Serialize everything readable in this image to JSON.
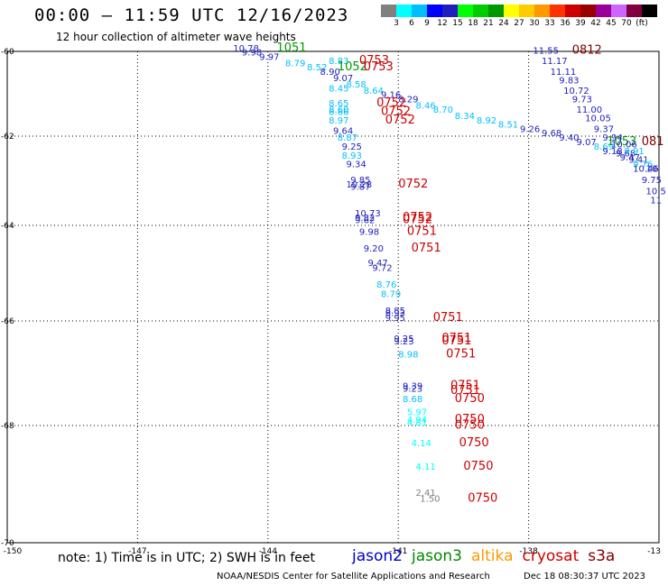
{
  "header": {
    "title": "00:00 – 11:59 UTC 12/16/2023",
    "subtitle": "12 hour collection of altimeter wave heights"
  },
  "colorbar": {
    "colors": [
      "#808080",
      "#00ffff",
      "#00bfff",
      "#0000ff",
      "#1f1fbf",
      "#00ff00",
      "#00cc00",
      "#009900",
      "#ffff00",
      "#ffcc00",
      "#ff9900",
      "#ff3300",
      "#cc0000",
      "#990000",
      "#990099",
      "#cc66ff",
      "#800040",
      "#000000"
    ],
    "labels": [
      "3",
      "6",
      "9",
      "12",
      "15",
      "18",
      "21",
      "24",
      "27",
      "30",
      "33",
      "36",
      "39",
      "42",
      "45",
      "70",
      "(ft)"
    ]
  },
  "axes": {
    "x_ticks": [
      "-150",
      "-147",
      "-144",
      "-141",
      "-138",
      "-13"
    ],
    "y_ticks": [
      "-60",
      "-62",
      "-64",
      "-66",
      "-68",
      "-70"
    ]
  },
  "footer": {
    "note": "note: 1) Time is in UTC; 2) SWH is in feet",
    "credit": "NOAA/NESDIS Center for Satellite Applications and Research",
    "timestamp": "Dec 18 08:30:37 UTC 2023"
  },
  "legend": [
    {
      "name": "jason2",
      "color": "#0000cc"
    },
    {
      "name": "jason3",
      "color": "#008800"
    },
    {
      "name": "altika",
      "color": "#ff9900"
    },
    {
      "name": "cryosat",
      "color": "#cc0000"
    },
    {
      "name": "s3a",
      "color": "#800000"
    }
  ],
  "map_labels": [
    {
      "text": "10.78",
      "color": "#1f1fbf",
      "lon": -144.8,
      "lat": -60.0
    },
    {
      "text": "9.97",
      "color": "#1f1fbf",
      "lon": -144.2,
      "lat": -60.2
    },
    {
      "text": "9.98",
      "color": "#1f1fbf",
      "lon": -144.6,
      "lat": -60.1
    },
    {
      "text": "1051",
      "color": "#009900",
      "lon": -143.8,
      "lat": -59.95
    },
    {
      "text": "8.79",
      "color": "#00bfff",
      "lon": -143.6,
      "lat": -60.35
    },
    {
      "text": "8.52",
      "color": "#00bfff",
      "lon": -143.1,
      "lat": -60.45
    },
    {
      "text": "8.83",
      "color": "#00bfff",
      "lon": -142.6,
      "lat": -60.3
    },
    {
      "text": "8.90",
      "color": "#1f1fbf",
      "lon": -142.8,
      "lat": -60.55
    },
    {
      "text": "1052",
      "color": "#009900",
      "lon": -142.4,
      "lat": -60.45
    },
    {
      "text": "0753",
      "color": "#cc0000",
      "lon": -141.9,
      "lat": -60.3
    },
    {
      "text": "0753",
      "color": "#cc0000",
      "lon": -141.8,
      "lat": -60.45
    },
    {
      "text": "9.07",
      "color": "#1f1fbf",
      "lon": -142.5,
      "lat": -60.7
    },
    {
      "text": "8.58",
      "color": "#00bfff",
      "lon": -142.2,
      "lat": -60.85
    },
    {
      "text": "8.45",
      "color": "#00bfff",
      "lon": -142.6,
      "lat": -60.95
    },
    {
      "text": "8.64",
      "color": "#00bfff",
      "lon": -141.8,
      "lat": -61.0
    },
    {
      "text": "9.16",
      "color": "#1f1fbf",
      "lon": -141.4,
      "lat": -61.1
    },
    {
      "text": "8.29",
      "color": "#1f1fbf",
      "lon": -141.0,
      "lat": -61.2
    },
    {
      "text": "8.65",
      "color": "#00bfff",
      "lon": -142.6,
      "lat": -61.3
    },
    {
      "text": "0752",
      "color": "#cc0000",
      "lon": -141.5,
      "lat": -61.3
    },
    {
      "text": "8.46",
      "color": "#00bfff",
      "lon": -140.6,
      "lat": -61.35
    },
    {
      "text": "8.70",
      "color": "#00bfff",
      "lon": -140.2,
      "lat": -61.45
    },
    {
      "text": "8.60",
      "color": "#00bfff",
      "lon": -142.6,
      "lat": -61.45
    },
    {
      "text": "8.66",
      "color": "#00bfff",
      "lon": -142.6,
      "lat": -61.5
    },
    {
      "text": "0752",
      "color": "#cc0000",
      "lon": -141.4,
      "lat": -61.5
    },
    {
      "text": "8.34",
      "color": "#00bfff",
      "lon": -139.7,
      "lat": -61.6
    },
    {
      "text": "8.97",
      "color": "#00bfff",
      "lon": -142.6,
      "lat": -61.7
    },
    {
      "text": "0752",
      "color": "#cc0000",
      "lon": -141.3,
      "lat": -61.7
    },
    {
      "text": "8.92",
      "color": "#00bfff",
      "lon": -139.2,
      "lat": -61.7
    },
    {
      "text": "8.51",
      "color": "#00bfff",
      "lon": -138.7,
      "lat": -61.8
    },
    {
      "text": "9.26",
      "color": "#1f1fbf",
      "lon": -138.2,
      "lat": -61.9
    },
    {
      "text": "9.64",
      "color": "#1f1fbf",
      "lon": -142.5,
      "lat": -61.95
    },
    {
      "text": "9.68",
      "color": "#1f1fbf",
      "lon": -137.7,
      "lat": -62.0
    },
    {
      "text": "8.87",
      "color": "#00bfff",
      "lon": -142.4,
      "lat": -62.1
    },
    {
      "text": "9.40",
      "color": "#1f1fbf",
      "lon": -137.3,
      "lat": -62.1
    },
    {
      "text": "9.07",
      "color": "#1f1fbf",
      "lon": -136.9,
      "lat": -62.2
    },
    {
      "text": "9.25",
      "color": "#1f1fbf",
      "lon": -142.3,
      "lat": -62.3
    },
    {
      "text": "8.93",
      "color": "#00bfff",
      "lon": -142.3,
      "lat": -62.5
    },
    {
      "text": "9.34",
      "color": "#1f1fbf",
      "lon": -142.2,
      "lat": -62.7
    },
    {
      "text": "9.85",
      "color": "#1f1fbf",
      "lon": -142.1,
      "lat": -63.05
    },
    {
      "text": "10.28",
      "color": "#1f1fbf",
      "lon": -142.2,
      "lat": -63.15
    },
    {
      "text": "9.87",
      "color": "#1f1fbf",
      "lon": -142.1,
      "lat": -63.2
    },
    {
      "text": "0752",
      "color": "#cc0000",
      "lon": -141.0,
      "lat": -63.15
    },
    {
      "text": "10.73",
      "color": "#1f1fbf",
      "lon": -142.0,
      "lat": -63.8
    },
    {
      "text": "9.82",
      "color": "#1f1fbf",
      "lon": -142.0,
      "lat": -63.9
    },
    {
      "text": "9.62",
      "color": "#1f1fbf",
      "lon": -142.0,
      "lat": -63.95
    },
    {
      "text": "0752",
      "color": "#cc0000",
      "lon": -140.9,
      "lat": -63.9
    },
    {
      "text": "0752",
      "color": "#cc0000",
      "lon": -140.9,
      "lat": -63.95
    },
    {
      "text": "9.98",
      "color": "#1f1fbf",
      "lon": -141.9,
      "lat": -64.2
    },
    {
      "text": "0751",
      "color": "#cc0000",
      "lon": -140.8,
      "lat": -64.2
    },
    {
      "text": "9.20",
      "color": "#1f1fbf",
      "lon": -141.8,
      "lat": -64.55
    },
    {
      "text": "0751",
      "color": "#cc0000",
      "lon": -140.7,
      "lat": -64.55
    },
    {
      "text": "9.47",
      "color": "#1f1fbf",
      "lon": -141.7,
      "lat": -64.85
    },
    {
      "text": "9.72",
      "color": "#1f1fbf",
      "lon": -141.6,
      "lat": -64.95
    },
    {
      "text": "8.76",
      "color": "#00bfff",
      "lon": -141.5,
      "lat": -65.3
    },
    {
      "text": "8.79",
      "color": "#00bfff",
      "lon": -141.4,
      "lat": -65.5
    },
    {
      "text": "8.85",
      "color": "#1f1fbf",
      "lon": -141.3,
      "lat": -65.85
    },
    {
      "text": "8.93",
      "color": "#1f1fbf",
      "lon": -141.3,
      "lat": -65.9
    },
    {
      "text": "9.95",
      "color": "#1f1fbf",
      "lon": -141.3,
      "lat": -66.0
    },
    {
      "text": "0751",
      "color": "#cc0000",
      "lon": -140.2,
      "lat": -66.0
    },
    {
      "text": "9.25",
      "color": "#1f1fbf",
      "lon": -141.1,
      "lat": -66.4
    },
    {
      "text": "9.23",
      "color": "#1f1fbf",
      "lon": -141.1,
      "lat": -66.45
    },
    {
      "text": "0751",
      "color": "#cc0000",
      "lon": -140.0,
      "lat": -66.4
    },
    {
      "text": "0751",
      "color": "#cc0000",
      "lon": -140.0,
      "lat": -66.45
    },
    {
      "text": "8.98",
      "color": "#00bfff",
      "lon": -141.0,
      "lat": -66.7
    },
    {
      "text": "0751",
      "color": "#cc0000",
      "lon": -139.9,
      "lat": -66.7
    },
    {
      "text": "9.39",
      "color": "#1f1fbf",
      "lon": -140.9,
      "lat": -67.3
    },
    {
      "text": "9.23",
      "color": "#1f1fbf",
      "lon": -140.9,
      "lat": -67.35
    },
    {
      "text": "0751",
      "color": "#cc0000",
      "lon": -139.8,
      "lat": -67.3
    },
    {
      "text": "0751",
      "color": "#cc0000",
      "lon": -139.8,
      "lat": -67.4
    },
    {
      "text": "8.68",
      "color": "#00bfff",
      "lon": -140.9,
      "lat": -67.55
    },
    {
      "text": "0750",
      "color": "#cc0000",
      "lon": -139.7,
      "lat": -67.55
    },
    {
      "text": "5.97",
      "color": "#00ffff",
      "lon": -140.8,
      "lat": -67.8
    },
    {
      "text": "4.94",
      "color": "#00ffff",
      "lon": -140.8,
      "lat": -67.95
    },
    {
      "text": "4.81",
      "color": "#00ffff",
      "lon": -140.8,
      "lat": -68.0
    },
    {
      "text": "0750",
      "color": "#cc0000",
      "lon": -139.7,
      "lat": -67.95
    },
    {
      "text": "0750",
      "color": "#cc0000",
      "lon": -139.7,
      "lat": -68.05
    },
    {
      "text": "4.14",
      "color": "#00ffff",
      "lon": -140.7,
      "lat": -68.35
    },
    {
      "text": "0750",
      "color": "#cc0000",
      "lon": -139.6,
      "lat": -68.35
    },
    {
      "text": "4.11",
      "color": "#00ffff",
      "lon": -140.6,
      "lat": -68.75
    },
    {
      "text": "0750",
      "color": "#cc0000",
      "lon": -139.5,
      "lat": -68.75
    },
    {
      "text": "2.41",
      "color": "#808080",
      "lon": -140.6,
      "lat": -69.2
    },
    {
      "text": "1.50",
      "color": "#808080",
      "lon": -140.5,
      "lat": -69.3
    },
    {
      "text": "0750",
      "color": "#cc0000",
      "lon": -139.4,
      "lat": -69.3
    },
    {
      "text": "11.55",
      "color": "#1f1fbf",
      "lon": -137.9,
      "lat": -60.05
    },
    {
      "text": "0812",
      "color": "#800000",
      "lon": -137.0,
      "lat": -60.05
    },
    {
      "text": "11.17",
      "color": "#1f1fbf",
      "lon": -137.7,
      "lat": -60.3
    },
    {
      "text": "11.11",
      "color": "#1f1fbf",
      "lon": -137.5,
      "lat": -60.55
    },
    {
      "text": "9.83",
      "color": "#1f1fbf",
      "lon": -137.3,
      "lat": -60.75
    },
    {
      "text": "10.72",
      "color": "#1f1fbf",
      "lon": -137.2,
      "lat": -61.0
    },
    {
      "text": "9.73",
      "color": "#1f1fbf",
      "lon": -137.0,
      "lat": -61.2
    },
    {
      "text": "11.00",
      "color": "#1f1fbf",
      "lon": -136.9,
      "lat": -61.45
    },
    {
      "text": "10.05",
      "color": "#1f1fbf",
      "lon": -136.7,
      "lat": -61.65
    },
    {
      "text": "9.37",
      "color": "#1f1fbf",
      "lon": -136.5,
      "lat": -61.9
    },
    {
      "text": "1053",
      "color": "#009900",
      "lon": -136.2,
      "lat": -62.2
    },
    {
      "text": "9.94",
      "color": "#1f1fbf",
      "lon": -136.3,
      "lat": -62.1
    },
    {
      "text": "10.06",
      "color": "#1f1fbf",
      "lon": -136.1,
      "lat": -62.25
    },
    {
      "text": "081",
      "color": "#800000",
      "lon": -135.4,
      "lat": -62.2
    },
    {
      "text": "8.69",
      "color": "#00bfff",
      "lon": -136.5,
      "lat": -62.3
    },
    {
      "text": "9.18",
      "color": "#1f1fbf",
      "lon": -136.3,
      "lat": -62.4
    },
    {
      "text": "9.68",
      "color": "#1f1fbf",
      "lon": -136.0,
      "lat": -62.45
    },
    {
      "text": "9.91",
      "color": "#00bfff",
      "lon": -135.8,
      "lat": -62.4
    },
    {
      "text": "9.47",
      "color": "#1f1fbf",
      "lon": -135.9,
      "lat": -62.55
    },
    {
      "text": "9.41",
      "color": "#1f1fbf",
      "lon": -135.7,
      "lat": -62.6
    },
    {
      "text": "9.76",
      "color": "#00bfff",
      "lon": -135.6,
      "lat": -62.7
    },
    {
      "text": "10.46",
      "color": "#1f1fbf",
      "lon": -135.6,
      "lat": -62.8
    },
    {
      "text": "10.",
      "color": "#1f1fbf",
      "lon": -135.3,
      "lat": -62.8
    },
    {
      "text": "9.75",
      "color": "#1f1fbf",
      "lon": -135.4,
      "lat": -63.05
    },
    {
      "text": "10.5",
      "color": "#1f1fbf",
      "lon": -135.3,
      "lat": -63.3
    },
    {
      "text": "11",
      "color": "#1f1fbf",
      "lon": -135.2,
      "lat": -63.5
    }
  ]
}
